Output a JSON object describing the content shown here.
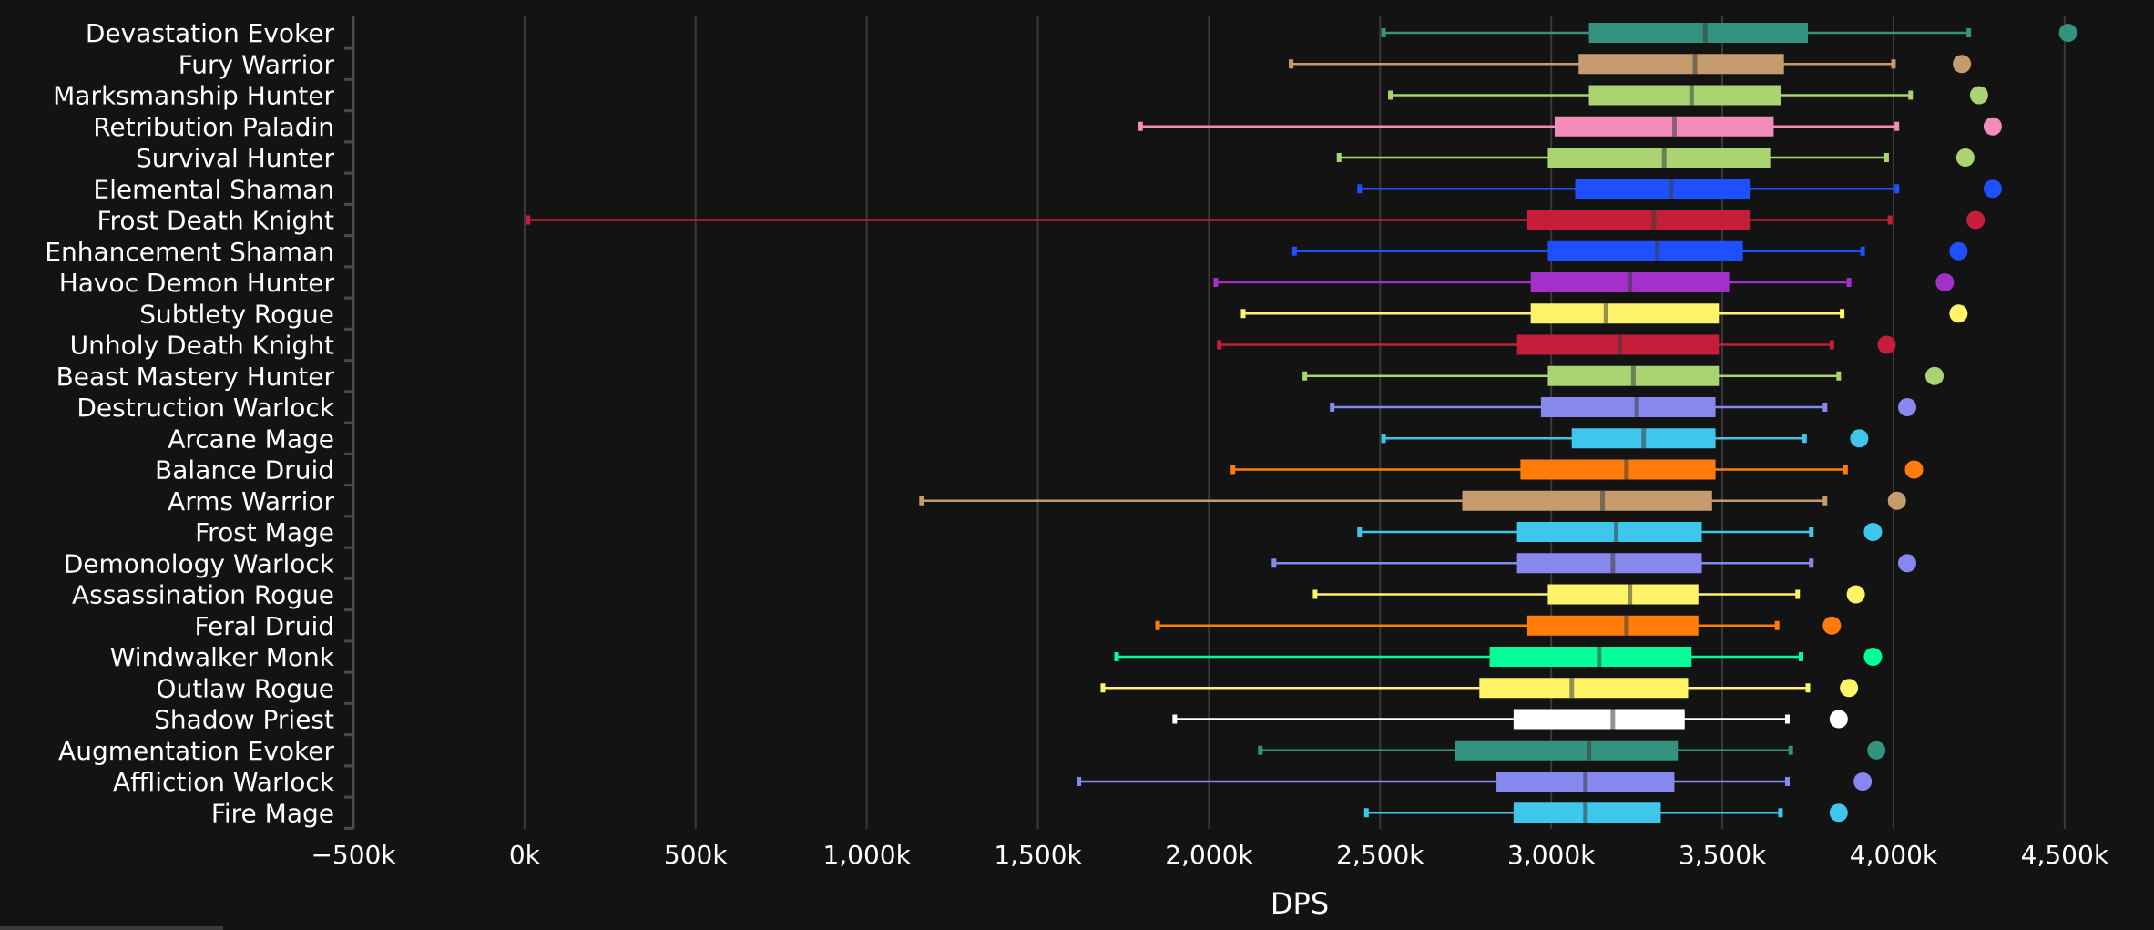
{
  "chart_data": {
    "type": "boxplot",
    "xlabel": "DPS",
    "xlim": [
      -500,
      4700
    ],
    "x_ticks": [
      -500,
      0,
      500,
      1000,
      1500,
      2000,
      2500,
      3000,
      3500,
      4000,
      4500
    ],
    "x_tick_labels": [
      "−500k",
      "0k",
      "500k",
      "1,000k",
      "1,500k",
      "2,000k",
      "2,500k",
      "3,000k",
      "3,500k",
      "4,000k",
      "4,500k"
    ],
    "grid": true,
    "series": [
      {
        "name": "Devastation Evoker",
        "color": "#33937F",
        "min": 2510,
        "q1": 3110,
        "median": 3450,
        "q3": 3750,
        "max": 4220,
        "outlier": 4510
      },
      {
        "name": "Fury Warrior",
        "color": "#C69B6D",
        "min": 2240,
        "q1": 3080,
        "median": 3420,
        "q3": 3680,
        "max": 4000,
        "outlier": 4200
      },
      {
        "name": "Marksmanship Hunter",
        "color": "#AAD372",
        "min": 2530,
        "q1": 3110,
        "median": 3410,
        "q3": 3670,
        "max": 4050,
        "outlier": 4250
      },
      {
        "name": "Retribution Paladin",
        "color": "#F48CBA",
        "min": 1800,
        "q1": 3010,
        "median": 3360,
        "q3": 3650,
        "max": 4010,
        "outlier": 4290
      },
      {
        "name": "Survival Hunter",
        "color": "#AAD372",
        "min": 2380,
        "q1": 2990,
        "median": 3330,
        "q3": 3640,
        "max": 3980,
        "outlier": 4210
      },
      {
        "name": "Elemental Shaman",
        "color": "#1E50FF",
        "min": 2440,
        "q1": 3070,
        "median": 3350,
        "q3": 3580,
        "max": 4010,
        "outlier": 4290
      },
      {
        "name": "Frost Death Knight",
        "color": "#C41E3A",
        "min": 10,
        "q1": 2930,
        "median": 3300,
        "q3": 3580,
        "max": 3990,
        "outlier": 4240
      },
      {
        "name": "Enhancement Shaman",
        "color": "#1E50FF",
        "min": 2250,
        "q1": 2990,
        "median": 3310,
        "q3": 3560,
        "max": 3910,
        "outlier": 4190
      },
      {
        "name": "Havoc Demon Hunter",
        "color": "#A330C9",
        "min": 2020,
        "q1": 2940,
        "median": 3230,
        "q3": 3520,
        "max": 3870,
        "outlier": 4150
      },
      {
        "name": "Subtlety Rogue",
        "color": "#FFF468",
        "min": 2100,
        "q1": 2940,
        "median": 3160,
        "q3": 3490,
        "max": 3850,
        "outlier": 4190
      },
      {
        "name": "Unholy Death Knight",
        "color": "#C41E3A",
        "min": 2030,
        "q1": 2900,
        "median": 3200,
        "q3": 3490,
        "max": 3820,
        "outlier": 3980
      },
      {
        "name": "Beast Mastery Hunter",
        "color": "#AAD372",
        "min": 2280,
        "q1": 2990,
        "median": 3240,
        "q3": 3490,
        "max": 3840,
        "outlier": 4120
      },
      {
        "name": "Destruction Warlock",
        "color": "#8788EE",
        "min": 2360,
        "q1": 2970,
        "median": 3250,
        "q3": 3480,
        "max": 3800,
        "outlier": 4040
      },
      {
        "name": "Arcane Mage",
        "color": "#3FC7EB",
        "min": 2510,
        "q1": 3060,
        "median": 3270,
        "q3": 3480,
        "max": 3740,
        "outlier": 3900
      },
      {
        "name": "Balance Druid",
        "color": "#FF7C0A",
        "min": 2070,
        "q1": 2910,
        "median": 3220,
        "q3": 3480,
        "max": 3860,
        "outlier": 4060
      },
      {
        "name": "Arms Warrior",
        "color": "#C69B6D",
        "min": 1160,
        "q1": 2740,
        "median": 3150,
        "q3": 3470,
        "max": 3800,
        "outlier": 4010
      },
      {
        "name": "Frost Mage",
        "color": "#3FC7EB",
        "min": 2440,
        "q1": 2900,
        "median": 3190,
        "q3": 3440,
        "max": 3760,
        "outlier": 3940
      },
      {
        "name": "Demonology Warlock",
        "color": "#8788EE",
        "min": 2190,
        "q1": 2900,
        "median": 3180,
        "q3": 3440,
        "max": 3760,
        "outlier": 4040
      },
      {
        "name": "Assassination Rogue",
        "color": "#FFF468",
        "min": 2310,
        "q1": 2990,
        "median": 3230,
        "q3": 3430,
        "max": 3720,
        "outlier": 3890
      },
      {
        "name": "Feral Druid",
        "color": "#FF7C0A",
        "min": 1850,
        "q1": 2930,
        "median": 3220,
        "q3": 3430,
        "max": 3660,
        "outlier": 3820
      },
      {
        "name": "Windwalker Monk",
        "color": "#00FF98",
        "min": 1730,
        "q1": 2820,
        "median": 3140,
        "q3": 3410,
        "max": 3730,
        "outlier": 3940
      },
      {
        "name": "Outlaw Rogue",
        "color": "#FFF468",
        "min": 1690,
        "q1": 2790,
        "median": 3060,
        "q3": 3400,
        "max": 3750,
        "outlier": 3870
      },
      {
        "name": "Shadow Priest",
        "color": "#FFFFFF",
        "min": 1900,
        "q1": 2890,
        "median": 3180,
        "q3": 3390,
        "max": 3690,
        "outlier": 3840
      },
      {
        "name": "Augmentation Evoker",
        "color": "#33937F",
        "min": 2150,
        "q1": 2720,
        "median": 3110,
        "q3": 3370,
        "max": 3700,
        "outlier": 3950
      },
      {
        "name": "Affliction Warlock",
        "color": "#8788EE",
        "min": 1620,
        "q1": 2840,
        "median": 3100,
        "q3": 3360,
        "max": 3690,
        "outlier": 3910
      },
      {
        "name": "Fire Mage",
        "color": "#3FC7EB",
        "min": 2460,
        "q1": 2890,
        "median": 3100,
        "q3": 3320,
        "max": 3670,
        "outlier": 3840
      }
    ]
  }
}
